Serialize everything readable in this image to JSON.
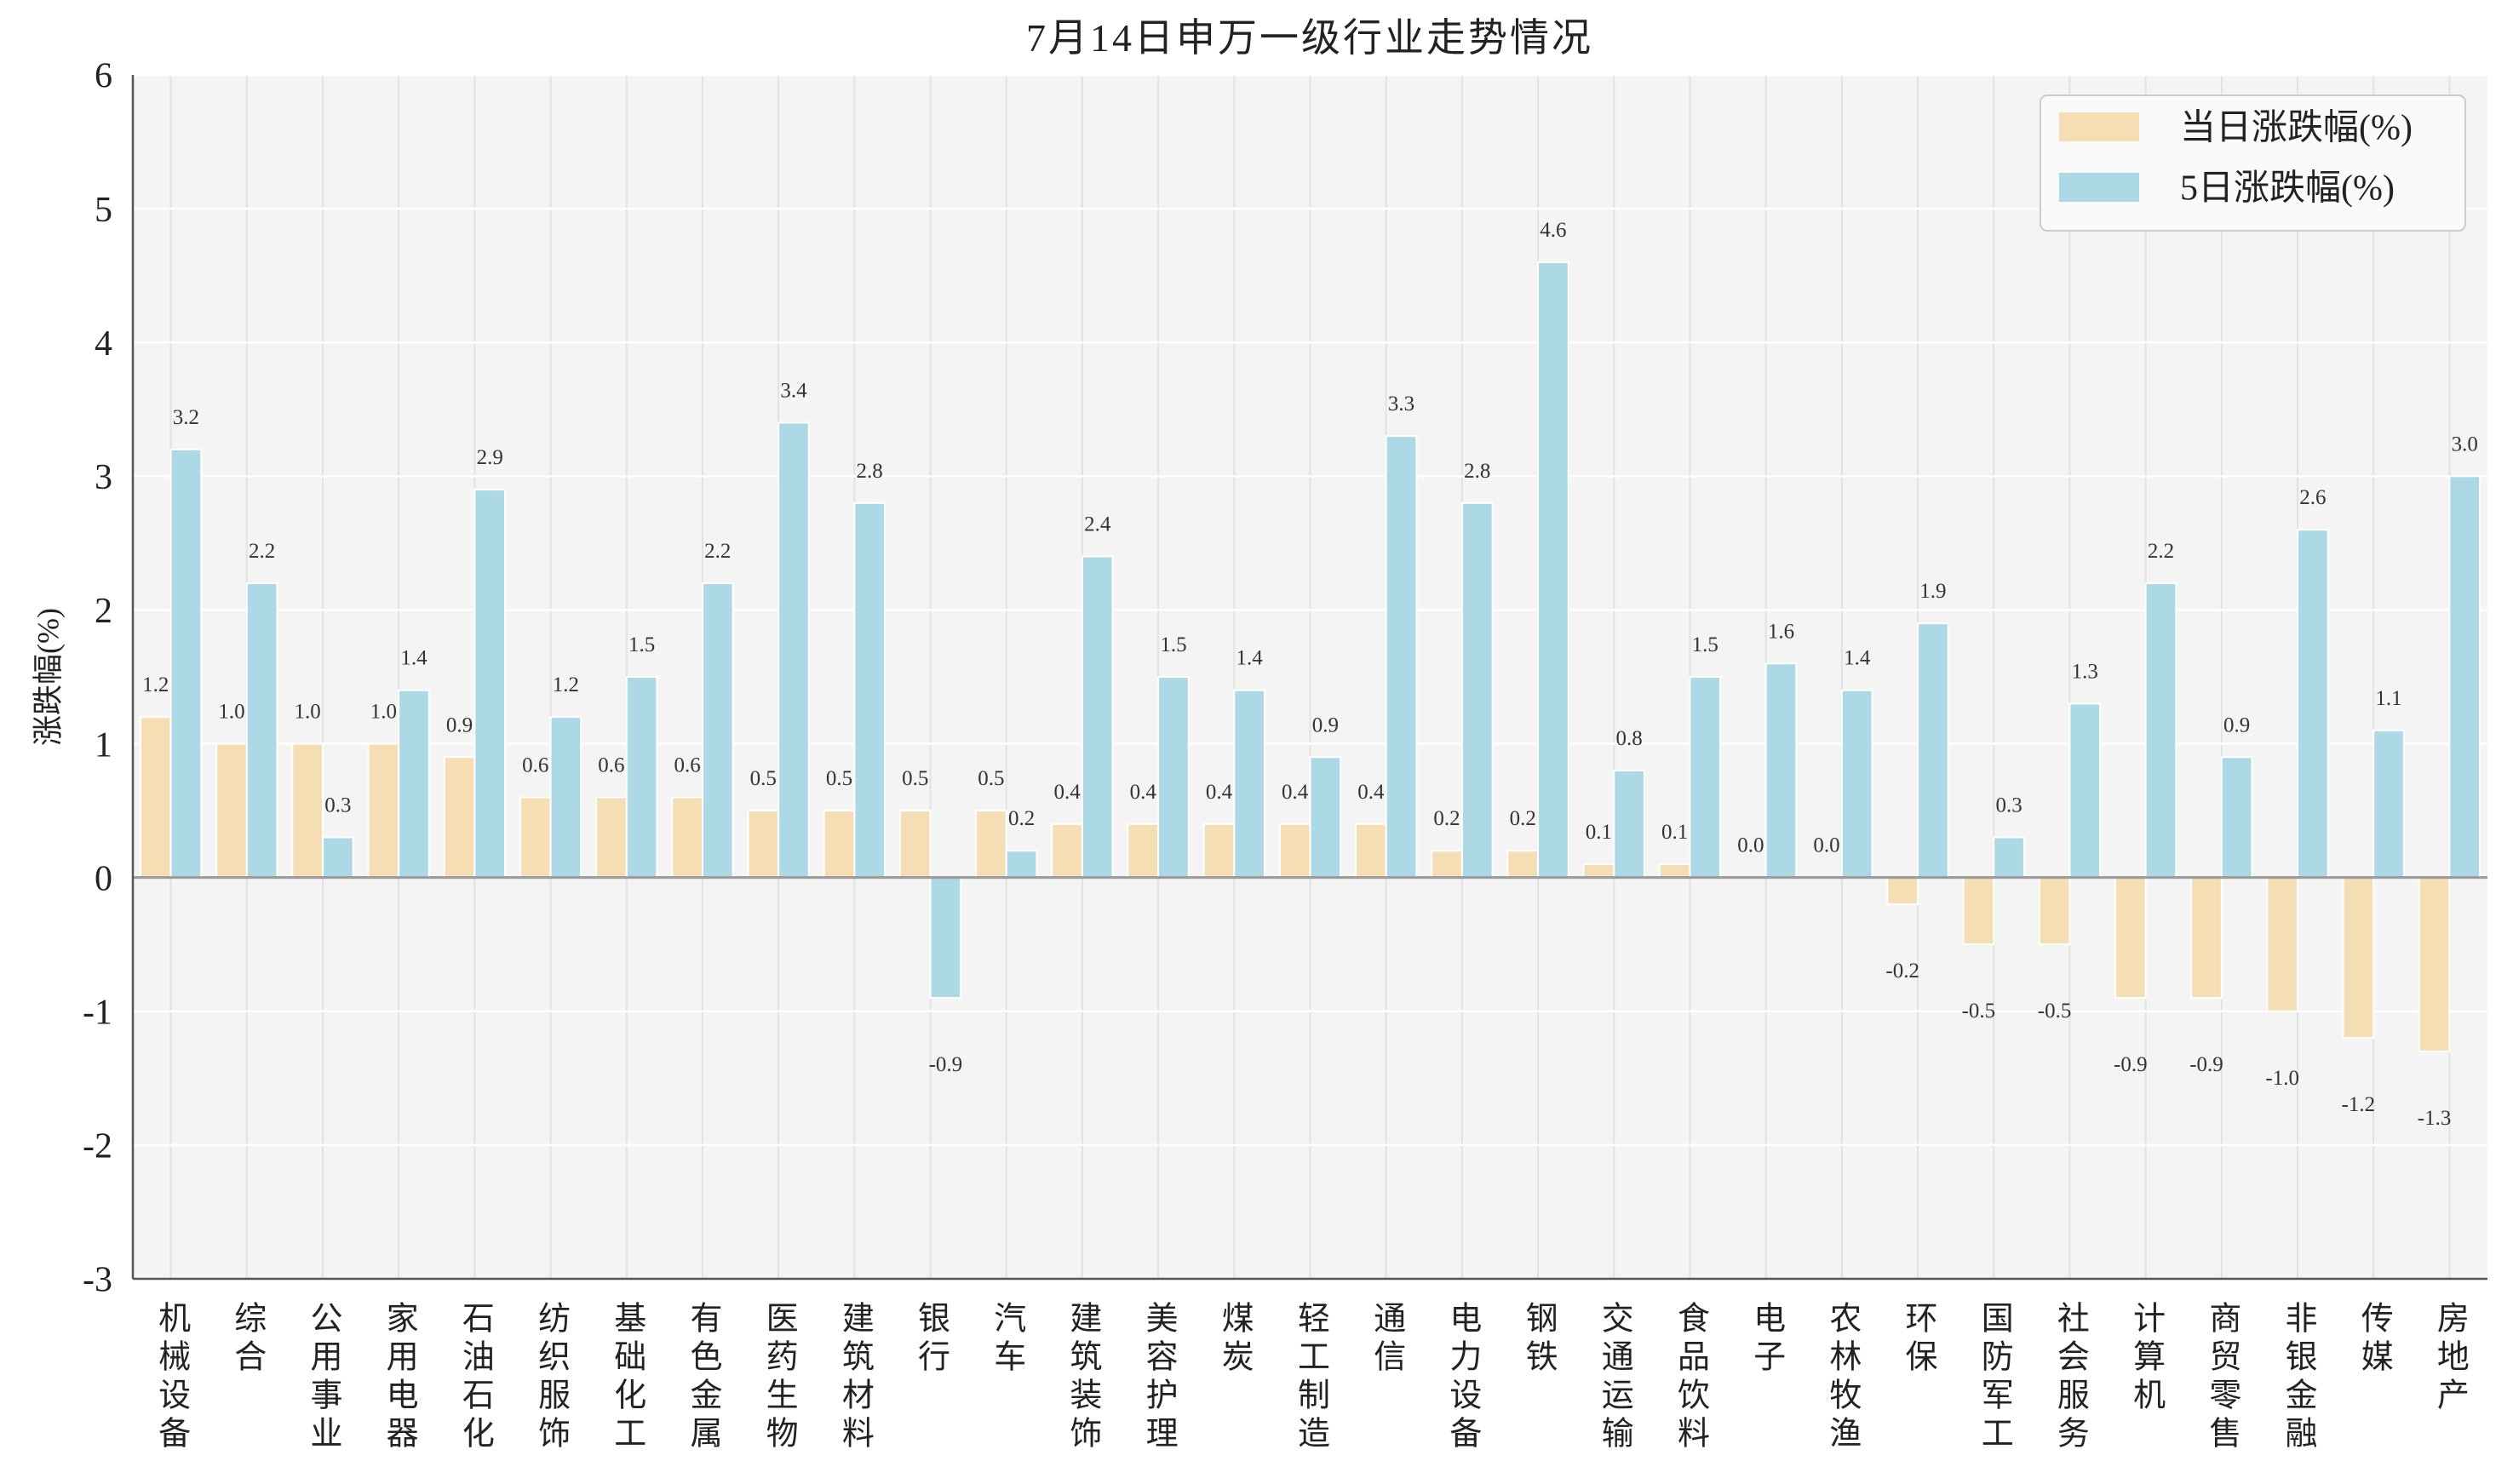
{
  "chart_data": {
    "type": "bar",
    "title": "7月14日申万一级行业走势情况",
    "ylabel": "涨跌幅(%)",
    "ylim": [
      -3,
      6
    ],
    "yticks": [
      -3,
      -2,
      -1,
      0,
      1,
      2,
      3,
      4,
      5,
      6
    ],
    "grid": true,
    "legend_position": "top-right",
    "categories": [
      "机械设备",
      "综合",
      "公用事业",
      "家用电器",
      "石油石化",
      "纺织服饰",
      "基础化工",
      "有色金属",
      "医药生物",
      "建筑材料",
      "银行",
      "汽车",
      "建筑装饰",
      "美容护理",
      "煤炭",
      "轻工制造",
      "通信",
      "电力设备",
      "钢铁",
      "交通运输",
      "食品饮料",
      "电子",
      "农林牧渔",
      "环保",
      "国防军工",
      "社会服务",
      "计算机",
      "商贸零售",
      "非银金融",
      "传媒",
      "房地产"
    ],
    "series": [
      {
        "name": "当日涨跌幅(%)",
        "color": "#F5DEB3",
        "values": [
          1.2,
          1.0,
          1.0,
          1.0,
          0.9,
          0.6,
          0.6,
          0.6,
          0.5,
          0.5,
          0.5,
          0.5,
          0.4,
          0.4,
          0.4,
          0.4,
          0.4,
          0.2,
          0.2,
          0.1,
          0.1,
          0.0,
          0.0,
          -0.2,
          -0.5,
          -0.5,
          -0.9,
          -0.9,
          -1.0,
          -1.2,
          -1.3
        ]
      },
      {
        "name": "5日涨跌幅(%)",
        "color": "#ADD8E6",
        "values": [
          3.2,
          2.2,
          0.3,
          1.4,
          2.9,
          1.2,
          1.5,
          2.2,
          3.4,
          2.8,
          -0.9,
          0.2,
          2.4,
          1.5,
          1.4,
          0.9,
          3.3,
          2.8,
          4.6,
          0.8,
          1.5,
          1.6,
          1.4,
          1.9,
          0.3,
          1.3,
          2.2,
          0.9,
          2.6,
          1.1,
          3.0
        ]
      }
    ]
  },
  "colors": {
    "plot_background": "#F4F4F4",
    "zero_line": "#999999",
    "axis": "#555555"
  }
}
